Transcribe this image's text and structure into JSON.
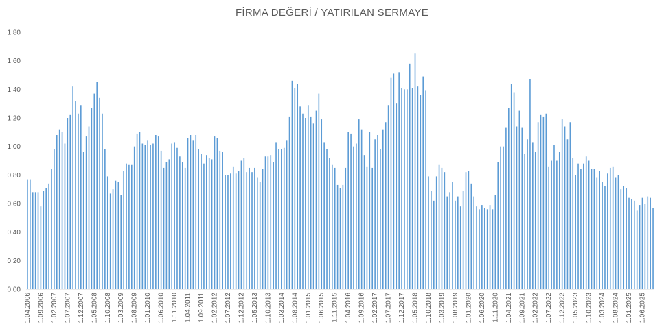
{
  "chart_data": {
    "type": "bar",
    "title": "FİRMA DEĞERİ / YATIRILAN SERMAYE",
    "xlabel": "",
    "ylabel": "",
    "ylim": [
      0,
      1.8
    ],
    "yticks": [
      "0.00",
      "0.20",
      "0.40",
      "0.60",
      "0.80",
      "1.00",
      "1.20",
      "1.40",
      "1.60",
      "1.80"
    ],
    "grid": false,
    "legend": "none",
    "bar_color": "#5B9BD5",
    "x_tick_labels": [
      "1.04.2006",
      "1.09.2006",
      "1.02.2007",
      "1.07.2007",
      "1.12.2007",
      "1.05.2008",
      "1.10.2008",
      "1.03.2009",
      "1.08.2009",
      "1.01.2010",
      "1.06.2010",
      "1.11.2010",
      "1.04.2011",
      "1.09.2011",
      "1.02.2012",
      "1.07.2012",
      "1.12.2012",
      "1.05.2013",
      "1.10.2013",
      "1.03.2014",
      "1.08.2014",
      "1.01.2015",
      "1.06.2015",
      "1.11.2015",
      "1.04.2016",
      "1.09.2016",
      "1.02.2017",
      "1.07.2017",
      "1.12.2017",
      "1.05.2018",
      "1.10.2018",
      "1.03.2019",
      "1.08.2019",
      "1.01.2020",
      "1.06.2020",
      "1.11.2020",
      "1.04.2021",
      "1.09.2021",
      "1.02.2022",
      "1.07.2022",
      "1.12.2022",
      "1.05.2023",
      "1.10.2023",
      "1.03.2024",
      "1.08.2024",
      "1.01.2025",
      "1.06.2025"
    ],
    "values": [
      0.77,
      0.77,
      0.68,
      0.68,
      0.68,
      0.58,
      0.69,
      0.71,
      0.74,
      0.84,
      0.98,
      1.08,
      1.12,
      1.1,
      1.02,
      1.2,
      1.22,
      1.42,
      1.32,
      1.23,
      1.29,
      0.96,
      1.07,
      1.14,
      1.27,
      1.37,
      1.45,
      1.34,
      1.23,
      0.98,
      0.79,
      0.67,
      0.7,
      0.76,
      0.75,
      0.66,
      0.83,
      0.88,
      0.87,
      0.87,
      1.0,
      1.09,
      1.1,
      1.02,
      1.01,
      1.04,
      1.01,
      1.02,
      1.08,
      1.07,
      0.97,
      0.85,
      0.89,
      0.91,
      1.02,
      1.03,
      0.99,
      0.93,
      0.89,
      0.85,
      1.06,
      1.08,
      1.04,
      1.08,
      0.98,
      0.95,
      0.88,
      0.94,
      0.92,
      0.91,
      1.07,
      1.06,
      0.97,
      0.96,
      0.8,
      0.8,
      0.81,
      0.86,
      0.81,
      0.83,
      0.9,
      0.92,
      0.82,
      0.85,
      0.82,
      0.85,
      0.78,
      0.75,
      0.84,
      0.93,
      0.93,
      0.94,
      0.89,
      1.03,
      0.98,
      0.98,
      0.99,
      1.04,
      1.21,
      1.46,
      1.41,
      1.44,
      1.28,
      1.23,
      1.2,
      1.29,
      1.21,
      1.16,
      1.25,
      1.37,
      1.19,
      1.03,
      0.98,
      0.92,
      0.87,
      0.85,
      0.73,
      0.71,
      0.73,
      0.85,
      1.1,
      1.09,
      1.0,
      1.02,
      1.19,
      1.12,
      0.94,
      0.86,
      1.1,
      0.85,
      1.05,
      1.08,
      0.98,
      1.12,
      1.17,
      1.29,
      1.48,
      1.51,
      1.3,
      1.52,
      1.41,
      1.4,
      1.4,
      1.58,
      1.41,
      1.65,
      1.42,
      1.36,
      1.49,
      1.39,
      0.79,
      0.69,
      0.62,
      0.79,
      0.87,
      0.85,
      0.82,
      0.65,
      0.68,
      0.75,
      0.62,
      0.65,
      0.58,
      0.69,
      0.82,
      0.83,
      0.74,
      0.65,
      0.58,
      0.56,
      0.59,
      0.57,
      0.56,
      0.59,
      0.56,
      0.66,
      0.89,
      1.0,
      1.0,
      1.13,
      1.27,
      1.44,
      1.38,
      1.14,
      1.25,
      1.13,
      0.95,
      1.05,
      1.47,
      1.03,
      0.96,
      1.17,
      1.22,
      1.21,
      1.23,
      0.86,
      0.9,
      1.01,
      0.9,
      0.96,
      1.19,
      1.14,
      1.05,
      1.17,
      0.92,
      0.8,
      0.88,
      0.84,
      0.88,
      0.93,
      0.9,
      0.84,
      0.84,
      0.78,
      0.83,
      0.75,
      0.72,
      0.81,
      0.85,
      0.86,
      0.78,
      0.8,
      0.7,
      0.72,
      0.71,
      0.64,
      0.63,
      0.62,
      0.55,
      0.59,
      0.64,
      0.6,
      0.65,
      0.64,
      0.57
    ]
  }
}
